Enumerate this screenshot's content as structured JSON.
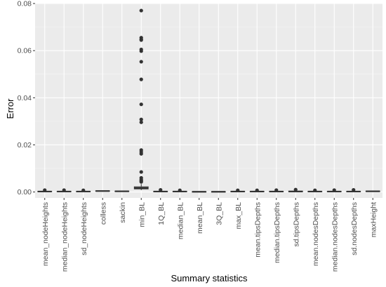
{
  "chart_data": {
    "type": "boxplot",
    "title": "",
    "xlabel": "Summary statistics",
    "ylabel": "Error",
    "ylim": [
      -0.0025,
      0.08
    ],
    "yticks": [
      0.0,
      0.02,
      0.04,
      0.06,
      0.08
    ],
    "ytick_labels": [
      "0.00",
      "0.02",
      "0.04",
      "0.06",
      "0.08"
    ],
    "grid": true,
    "legend": "none",
    "colors": {
      "panel": "#ebebeb",
      "grid_major": "#ffffff",
      "grid_minor": "#f5f5f5",
      "box_fill": "#ffffff",
      "box_line": "#333333",
      "point": "#333333"
    },
    "categories": [
      "mean_nodeHeights",
      "median_nodeHeights",
      "sd_nodeHeights",
      "colless",
      "sackin",
      "min_BL",
      "1Q_BL",
      "median_BL",
      "mean_BL",
      "3Q_BL",
      "max_BL",
      "mean.tipsDepths",
      "median.tipsDepths",
      "sd.tipsDepths",
      "mean.nodesDepths",
      "median.nodesDepths",
      "sd.nodesDepths",
      "maxHeight"
    ],
    "boxes": [
      {
        "q1": 0.0001,
        "median": 0.0002,
        "q3": 0.0003,
        "min": 0.0,
        "max": 0.0005,
        "outliers": [
          0.0008
        ]
      },
      {
        "q1": 0.0001,
        "median": 0.0002,
        "q3": 0.0003,
        "min": 0.0,
        "max": 0.0005,
        "outliers": [
          0.0008
        ]
      },
      {
        "q1": 0.0001,
        "median": 0.0002,
        "q3": 0.0003,
        "min": 0.0,
        "max": 0.0005,
        "outliers": [
          0.0007
        ]
      },
      {
        "q1": 0.0003,
        "median": 0.0004,
        "q3": 0.0005,
        "min": 0.0002,
        "max": 0.0006,
        "outliers": []
      },
      {
        "q1": 0.0002,
        "median": 0.0003,
        "q3": 0.0004,
        "min": 0.0001,
        "max": 0.0005,
        "outliers": []
      },
      {
        "q1": 0.0013,
        "median": 0.0017,
        "q3": 0.0022,
        "min": 0.0008,
        "max": 0.0034,
        "outliers": [
          0.077,
          0.0655,
          0.0648,
          0.0645,
          0.0605,
          0.0598,
          0.0553,
          0.0478,
          0.0372,
          0.0308,
          0.0296,
          0.0178,
          0.017,
          0.0162,
          0.0085,
          0.006,
          0.0052,
          0.0047,
          0.0043
        ]
      },
      {
        "q1": 0.0001,
        "median": 0.0002,
        "q3": 0.0003,
        "min": 0.0,
        "max": 0.0005,
        "outliers": [
          0.0009
        ]
      },
      {
        "q1": 0.0001,
        "median": 0.0002,
        "q3": 0.0003,
        "min": 0.0,
        "max": 0.0005,
        "outliers": [
          0.0007
        ]
      },
      {
        "q1": 5e-05,
        "median": 0.0001,
        "q3": 0.00015,
        "min": 0.0,
        "max": 0.0002,
        "outliers": []
      },
      {
        "q1": 5e-05,
        "median": 0.0001,
        "q3": 0.00015,
        "min": 0.0,
        "max": 0.0002,
        "outliers": []
      },
      {
        "q1": 0.0001,
        "median": 0.0002,
        "q3": 0.0003,
        "min": 0.0,
        "max": 0.0005,
        "outliers": [
          0.0007
        ]
      },
      {
        "q1": 0.0001,
        "median": 0.0002,
        "q3": 0.0003,
        "min": 0.0,
        "max": 0.0005,
        "outliers": [
          0.0007
        ]
      },
      {
        "q1": 0.0001,
        "median": 0.0002,
        "q3": 0.0003,
        "min": 0.0,
        "max": 0.0005,
        "outliers": [
          0.0008
        ]
      },
      {
        "q1": 0.0001,
        "median": 0.0002,
        "q3": 0.0004,
        "min": 0.0,
        "max": 0.0006,
        "outliers": [
          0.001
        ]
      },
      {
        "q1": 0.0001,
        "median": 0.0002,
        "q3": 0.0003,
        "min": 0.0,
        "max": 0.0005,
        "outliers": [
          0.0007
        ]
      },
      {
        "q1": 0.0001,
        "median": 0.0002,
        "q3": 0.0003,
        "min": 0.0,
        "max": 0.0005,
        "outliers": [
          0.0008
        ]
      },
      {
        "q1": 0.0001,
        "median": 0.0002,
        "q3": 0.0003,
        "min": 0.0,
        "max": 0.0005,
        "outliers": [
          0.0009
        ]
      },
      {
        "q1": 0.0002,
        "median": 0.0003,
        "q3": 0.0004,
        "min": 0.0001,
        "max": 0.0005,
        "outliers": []
      }
    ]
  }
}
